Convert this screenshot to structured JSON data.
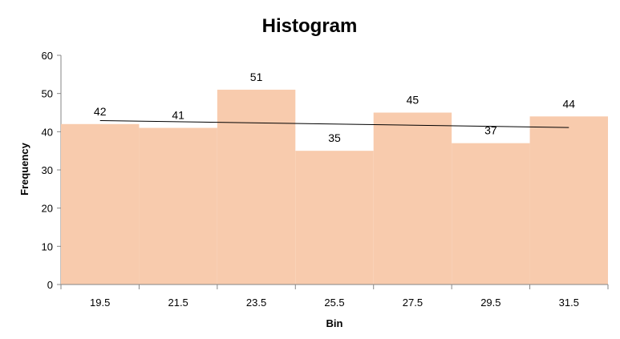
{
  "chart_data": {
    "type": "bar",
    "title": "Histogram",
    "xlabel": "Bin",
    "ylabel": "Frequency",
    "categories": [
      "19.5",
      "21.5",
      "23.5",
      "25.5",
      "27.5",
      "29.5",
      "31.5"
    ],
    "values": [
      42,
      41,
      51,
      35,
      45,
      37,
      44
    ],
    "ylim": [
      0,
      60
    ],
    "yticks": [
      0,
      10,
      20,
      30,
      40,
      50,
      60
    ],
    "bar_color": "#F8CBAD",
    "trendline": {
      "type": "linear",
      "color": "#000000",
      "start": 42.9,
      "end": 41.1
    },
    "grid": false,
    "legend": "none",
    "data_labels": true
  }
}
